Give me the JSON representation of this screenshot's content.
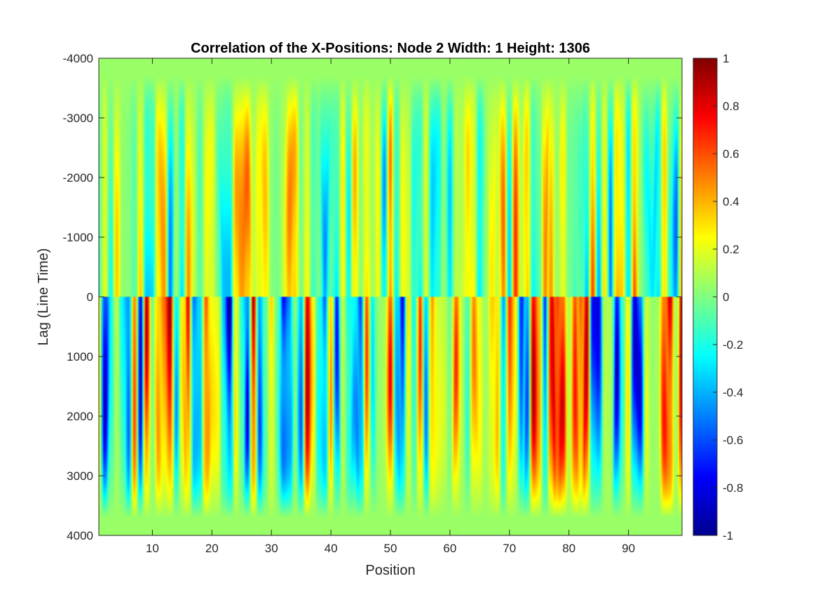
{
  "chart_data": {
    "type": "heatmap",
    "title": "Correlation of the X-Positions: Node 2 Width:  1 Height:  1306",
    "xlabel": "Position",
    "ylabel": "Lag (Line Time)",
    "xlim": [
      1,
      99
    ],
    "ylim": [
      -4000,
      4000
    ],
    "y_direction": "reversed",
    "x_ticks": [
      10,
      20,
      30,
      40,
      50,
      60,
      70,
      80,
      90
    ],
    "y_ticks": [
      -4000,
      -3000,
      -2000,
      -1000,
      0,
      1000,
      2000,
      3000,
      4000
    ],
    "colormap": "jet",
    "clim": [
      -1,
      1
    ],
    "colorbar_ticks": [
      -1,
      -0.8,
      -0.6,
      -0.4,
      -0.2,
      0,
      0.2,
      0.4,
      0.6,
      0.8,
      1
    ],
    "colorbar_position": "right",
    "grid": false
  }
}
